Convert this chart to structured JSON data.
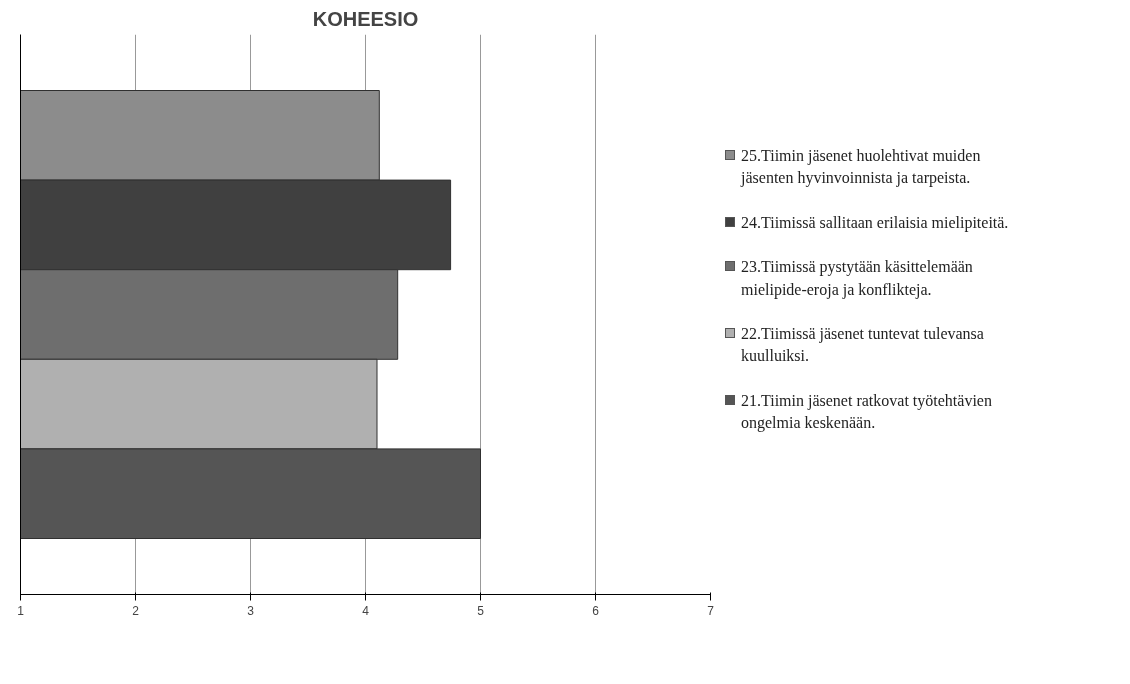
{
  "chart_data": {
    "type": "bar",
    "orientation": "horizontal",
    "title": "KOHEESIO",
    "categories": [
      null
    ],
    "series": [
      {
        "name": "25.Tiimin jäsenet huolehtivat muiden jäsenten hyvinvoinnista ja tarpeista.",
        "color": "#8c8c8c",
        "values": [
          4.12
        ]
      },
      {
        "name": "24.Tiimissä sallitaan erilaisia mielipiteitä.",
        "color": "#404040",
        "values": [
          4.74
        ]
      },
      {
        "name": "23.Tiimissä pystytään käsittelemään mielipide-eroja ja konflikteja.",
        "color": "#6e6e6e",
        "values": [
          4.28
        ]
      },
      {
        "name": "22.Tiimissä jäsenet tuntevat tulevansa kuulluiksi.",
        "color": "#b0b0b0",
        "values": [
          4.1
        ]
      },
      {
        "name": "21.Tiimin jäsenet ratkovat työtehtävien ongelmia keskenään.",
        "color": "#555555",
        "values": [
          5.0
        ]
      }
    ],
    "xlim": [
      1,
      7
    ],
    "xticks": [
      1,
      2,
      3,
      4,
      5,
      6,
      7
    ],
    "grid": "x",
    "legend": "right"
  }
}
